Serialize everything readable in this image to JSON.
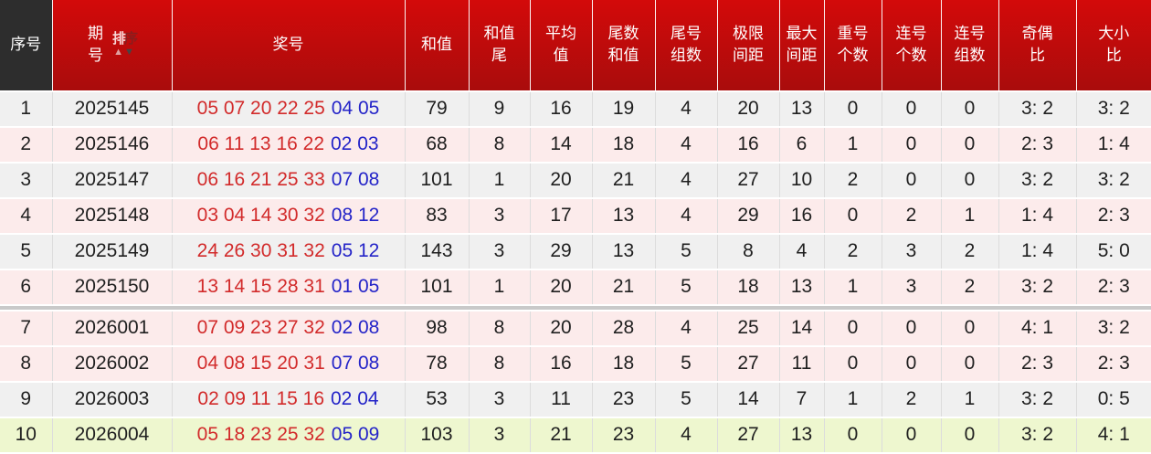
{
  "header": {
    "seq": "序号",
    "period": "期\n号",
    "sort": {
      "char1": "排",
      "char2": "序",
      "up": "▲",
      "down": "▼"
    },
    "prize": "奖号",
    "stat_cols": [
      "和值",
      "和值\n尾",
      "平均\n值",
      "尾数\n和值",
      "尾号\n组数",
      "极限\n间距",
      "最大\n间距",
      "重号\n个数",
      "连号\n个数",
      "连号\n组数",
      "奇偶\n比",
      "大小\n比"
    ]
  },
  "divider_after_row": 6,
  "rows": [
    {
      "seq": "1",
      "period": "2025145",
      "front": "05 07 20 22 25",
      "back": "04 05",
      "stats": [
        "79",
        "9",
        "16",
        "19",
        "4",
        "20",
        "13",
        "0",
        "0",
        "0",
        "3: 2",
        "3: 2"
      ],
      "bg": "gray"
    },
    {
      "seq": "2",
      "period": "2025146",
      "front": "06 11 13 16 22",
      "back": "02 03",
      "stats": [
        "68",
        "8",
        "14",
        "18",
        "4",
        "16",
        "6",
        "1",
        "0",
        "0",
        "2: 3",
        "1: 4"
      ],
      "bg": "pink"
    },
    {
      "seq": "3",
      "period": "2025147",
      "front": "06 16 21 25 33",
      "back": "07 08",
      "stats": [
        "101",
        "1",
        "20",
        "21",
        "4",
        "27",
        "10",
        "2",
        "0",
        "0",
        "3: 2",
        "3: 2"
      ],
      "bg": "gray"
    },
    {
      "seq": "4",
      "period": "2025148",
      "front": "03 04 14 30 32",
      "back": "08 12",
      "stats": [
        "83",
        "3",
        "17",
        "13",
        "4",
        "29",
        "16",
        "0",
        "2",
        "1",
        "1: 4",
        "2: 3"
      ],
      "bg": "pink"
    },
    {
      "seq": "5",
      "period": "2025149",
      "front": "24 26 30 31 32",
      "back": "05 12",
      "stats": [
        "143",
        "3",
        "29",
        "13",
        "5",
        "8",
        "4",
        "2",
        "3",
        "2",
        "1: 4",
        "5: 0"
      ],
      "bg": "gray"
    },
    {
      "seq": "6",
      "period": "2025150",
      "front": "13 14 15 28 31",
      "back": "01 05",
      "stats": [
        "101",
        "1",
        "20",
        "21",
        "5",
        "18",
        "13",
        "1",
        "3",
        "2",
        "3: 2",
        "2: 3"
      ],
      "bg": "pink"
    },
    {
      "seq": "7",
      "period": "2026001",
      "front": "07 09 23 27 32",
      "back": "02 08",
      "stats": [
        "98",
        "8",
        "20",
        "28",
        "4",
        "25",
        "14",
        "0",
        "0",
        "0",
        "4: 1",
        "3: 2"
      ],
      "bg": "pink"
    },
    {
      "seq": "8",
      "period": "2026002",
      "front": "04 08 15 20 31",
      "back": "07 08",
      "stats": [
        "78",
        "8",
        "16",
        "18",
        "5",
        "27",
        "11",
        "0",
        "0",
        "0",
        "2: 3",
        "2: 3"
      ],
      "bg": "pink"
    },
    {
      "seq": "9",
      "period": "2026003",
      "front": "02 09 11 15 16",
      "back": "02 04",
      "stats": [
        "53",
        "3",
        "11",
        "23",
        "5",
        "14",
        "7",
        "1",
        "2",
        "1",
        "3: 2",
        "0: 5"
      ],
      "bg": "gray"
    },
    {
      "seq": "10",
      "period": "2026004",
      "front": "05 18 23 25 32",
      "back": "05 09",
      "stats": [
        "103",
        "3",
        "21",
        "23",
        "4",
        "27",
        "13",
        "0",
        "0",
        "0",
        "3: 2",
        "4: 1"
      ],
      "bg": "green"
    }
  ],
  "colors": {
    "header_red_top": "#d30a0a",
    "header_red_bottom": "#a90c0c",
    "header_dark": "#2d2d2d",
    "row_gray": "#f0f0f0",
    "row_pink": "#fcebeb",
    "row_green": "#eef7cf",
    "divider": "#c9c9c9",
    "front_number": "#d22b2b",
    "back_number": "#2424c8",
    "text": "#1f1f1f",
    "grid_line": "#dcdcdc"
  }
}
